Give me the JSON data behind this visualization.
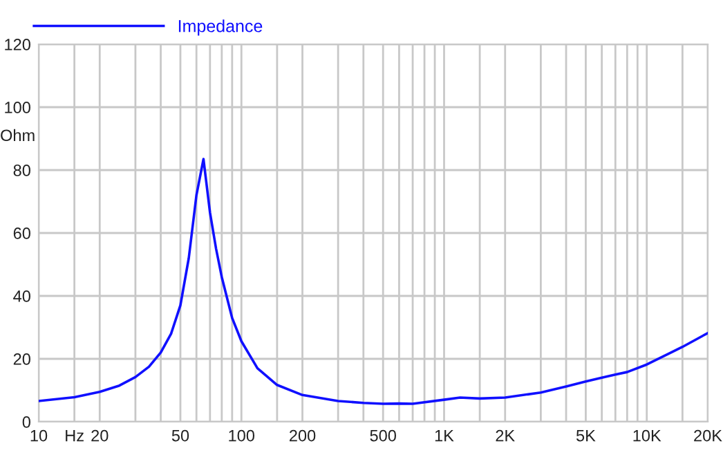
{
  "chart_data": {
    "type": "line",
    "ylabel": "Ohm",
    "log": "x",
    "x": [
      10,
      15,
      20,
      25,
      30,
      35,
      40,
      45,
      50,
      55,
      60,
      65,
      70,
      75,
      80,
      90,
      100,
      120,
      150,
      200,
      300,
      400,
      500,
      600,
      700,
      1000,
      1200,
      1500,
      2000,
      3000,
      4000,
      5000,
      6000,
      7000,
      8000,
      10000,
      15000,
      20000
    ],
    "series": [
      {
        "name": "Impedance",
        "color": "#1010ff",
        "values": [
          6.6,
          7.8,
          9.5,
          11.5,
          14.2,
          17.5,
          22,
          28,
          37,
          52,
          72,
          83.5,
          66.5,
          55,
          46,
          33,
          25.6,
          17,
          11.7,
          8.5,
          6.6,
          6,
          5.7,
          5.8,
          5.7,
          7,
          7.7,
          7.4,
          7.7,
          9.3,
          11.2,
          12.8,
          14,
          15,
          15.8,
          18.2,
          23.8,
          28.2
        ]
      }
    ],
    "xlim": [
      10,
      20000
    ],
    "ylim": [
      0,
      120
    ],
    "xticks": [
      10,
      {
        "value": 15,
        "label": "Hz"
      },
      20,
      {
        "value": 30,
        "label": null
      },
      {
        "value": 40,
        "label": null
      },
      50,
      {
        "value": 60,
        "label": null
      },
      {
        "value": 70,
        "label": null
      },
      {
        "value": 80,
        "label": null
      },
      {
        "value": 90,
        "label": null
      },
      100,
      {
        "value": 150,
        "label": null
      },
      200,
      {
        "value": 300,
        "label": null
      },
      {
        "value": 400,
        "label": null
      },
      500,
      {
        "value": 600,
        "label": null
      },
      {
        "value": 700,
        "label": null
      },
      {
        "value": 800,
        "label": null
      },
      {
        "value": 900,
        "label": null
      },
      {
        "value": 1000,
        "label": "1K"
      },
      {
        "value": 1500,
        "label": null
      },
      {
        "value": 2000,
        "label": "2K"
      },
      {
        "value": 3000,
        "label": null
      },
      {
        "value": 4000,
        "label": null
      },
      {
        "value": 5000,
        "label": "5K"
      },
      {
        "value": 6000,
        "label": null
      },
      {
        "value": 7000,
        "label": null
      },
      {
        "value": 8000,
        "label": null
      },
      {
        "value": 9000,
        "label": null
      },
      {
        "value": 10000,
        "label": "10K"
      },
      {
        "value": 15000,
        "label": null
      },
      {
        "value": 20000,
        "label": "20K"
      }
    ],
    "yticks": [
      0,
      20,
      40,
      60,
      80,
      100,
      120
    ],
    "grid": true,
    "legend": "top left",
    "marker": "none",
    "line_style": "solid"
  }
}
